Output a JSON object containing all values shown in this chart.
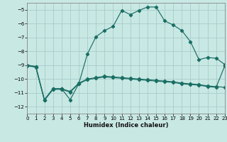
{
  "xlabel": "Humidex (Indice chaleur)",
  "bg_color": "#c8e8e4",
  "line_color": "#1a6e64",
  "grid_color": "#a8ccca",
  "xlim": [
    0,
    23
  ],
  "ylim": [
    -12.5,
    -4.5
  ],
  "xticks": [
    0,
    1,
    2,
    3,
    4,
    5,
    6,
    7,
    8,
    9,
    10,
    11,
    12,
    13,
    14,
    15,
    16,
    17,
    18,
    19,
    20,
    21,
    22,
    23
  ],
  "yticks": [
    -12,
    -11,
    -10,
    -9,
    -8,
    -7,
    -6,
    -5
  ],
  "line1_x": [
    0,
    1,
    2,
    3,
    4,
    5,
    6,
    7,
    8,
    9,
    10,
    11,
    12,
    13,
    14,
    15,
    16,
    17,
    18,
    19,
    20,
    21,
    22,
    23
  ],
  "line1_y": [
    -9.0,
    -9.1,
    -11.5,
    -10.7,
    -10.7,
    -10.9,
    -10.3,
    -10.0,
    -9.9,
    -9.8,
    -9.85,
    -9.9,
    -9.95,
    -10.0,
    -10.05,
    -10.1,
    -10.15,
    -10.2,
    -10.3,
    -10.35,
    -10.4,
    -10.5,
    -10.55,
    -10.6
  ],
  "line2_x": [
    0,
    1,
    2,
    3,
    4,
    5,
    6,
    7,
    8,
    9,
    10,
    11,
    12,
    13,
    14,
    15,
    16,
    17,
    18,
    19,
    20,
    21,
    22,
    23
  ],
  "line2_y": [
    -9.05,
    -9.15,
    -11.55,
    -10.75,
    -10.75,
    -10.95,
    -10.35,
    -10.05,
    -9.95,
    -9.85,
    -9.9,
    -9.95,
    -10.0,
    -10.05,
    -10.1,
    -10.15,
    -10.2,
    -10.25,
    -10.35,
    -10.4,
    -10.45,
    -10.55,
    -10.6,
    -9.05
  ],
  "line3_x": [
    0,
    1,
    2,
    3,
    4,
    5,
    6,
    7,
    8,
    9,
    10,
    11,
    12,
    13,
    14,
    15,
    16,
    17,
    18,
    19,
    20,
    21,
    22,
    23
  ],
  "line3_y": [
    -9.0,
    -9.1,
    -11.5,
    -10.7,
    -10.7,
    -11.5,
    -10.35,
    -8.2,
    -6.95,
    -6.5,
    -6.2,
    -5.05,
    -5.35,
    -5.05,
    -4.8,
    -4.8,
    -5.8,
    -6.1,
    -6.5,
    -7.3,
    -8.6,
    -8.45,
    -8.5,
    -8.95
  ]
}
